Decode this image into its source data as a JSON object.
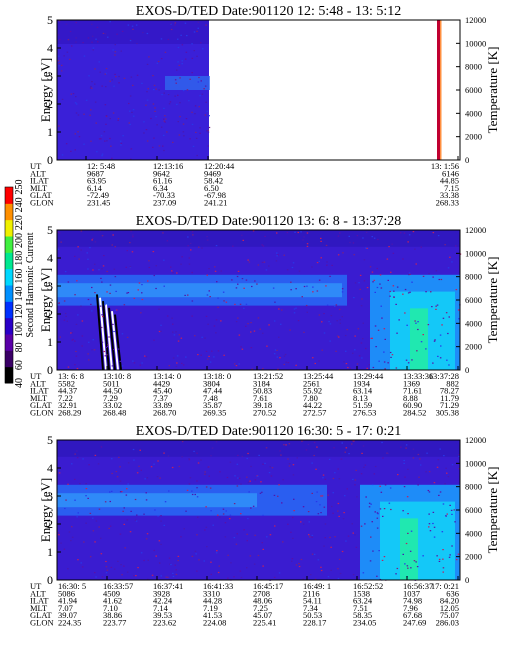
{
  "chart_data": [
    {
      "type": "heatmap",
      "title": "EXOS-D/TED   Date:901120  12: 5:48 - 13: 5:12",
      "ylabel": "Energy [eV]",
      "y2label": "Temperature [K]",
      "ylim": [
        0,
        5
      ],
      "y2lim": [
        0,
        12000
      ],
      "yticks": [
        "0",
        "1",
        "2",
        "3",
        "4",
        "5"
      ],
      "y2ticks": [
        "0",
        "2000",
        "4000",
        "6000",
        "8000",
        "10000",
        "12000"
      ],
      "grid": false,
      "orbit_labels": [
        "UT",
        "ALT",
        "ILAT",
        "MLT",
        "GLAT",
        "GLON"
      ],
      "orbit_columns": [
        {
          "UT": "12: 5:48",
          "ALT": "9687",
          "ILAT": "63.95",
          "MLT": "6.14",
          "GLAT": "-72.49",
          "GLON": "231.45"
        },
        {
          "UT": "12:13:16",
          "ALT": "9642",
          "ILAT": "61.16",
          "MLT": "6.34",
          "GLAT": "-70.33",
          "GLON": "237.09"
        },
        {
          "UT": "12:20:44",
          "ALT": "9469",
          "ILAT": "58.42",
          "MLT": "6.50",
          "GLAT": "-67.98",
          "GLON": "241.21"
        },
        {
          "UT": "13: 1:56",
          "ALT": "6146",
          "ILAT": "44.85",
          "MLT": "7.15",
          "GLAT": "33.38",
          "GLON": "268.33"
        }
      ]
    },
    {
      "type": "heatmap",
      "title": "EXOS-D/TED   Date:901120  13: 6: 8 - 13:37:28",
      "ylabel": "Energy [eV]",
      "y2label": "Temperature [K]",
      "ylim": [
        0,
        5
      ],
      "y2lim": [
        0,
        12000
      ],
      "yticks": [
        "0",
        "1",
        "2",
        "3",
        "4",
        "5"
      ],
      "y2ticks": [
        "0",
        "2000",
        "4000",
        "6000",
        "8000",
        "10000",
        "12000"
      ],
      "grid": false,
      "orbit_labels": [
        "UT",
        "ALT",
        "ILAT",
        "MLT",
        "GLAT",
        "GLON"
      ],
      "orbit_columns": [
        {
          "UT": "13: 6: 8",
          "ALT": "5582",
          "ILAT": "44.37",
          "MLT": "7.22",
          "GLAT": "32.91",
          "GLON": "268.29"
        },
        {
          "UT": "13:10: 8",
          "ALT": "5011",
          "ILAT": "44.50",
          "MLT": "7.29",
          "GLAT": "33.02",
          "GLON": "268.48"
        },
        {
          "UT": "13:14: 0",
          "ALT": "4429",
          "ILAT": "45.40",
          "MLT": "7.37",
          "GLAT": "33.89",
          "GLON": "268.70"
        },
        {
          "UT": "13:18: 0",
          "ALT": "3804",
          "ILAT": "47.44",
          "MLT": "7.48",
          "GLAT": "35.87",
          "GLON": "269.35"
        },
        {
          "UT": "13:21:52",
          "ALT": "3184",
          "ILAT": "50.83",
          "MLT": "7.61",
          "GLAT": "39.18",
          "GLON": "270.52"
        },
        {
          "UT": "13:25:44",
          "ALT": "2561",
          "ILAT": "55.92",
          "MLT": "7.80",
          "GLAT": "44.22",
          "GLON": "272.57"
        },
        {
          "UT": "13:29:44",
          "ALT": "1934",
          "ILAT": "63.14",
          "MLT": "8.13",
          "GLAT": "51.59",
          "GLON": "276.53"
        },
        {
          "UT": "13:33:36",
          "ALT": "1369",
          "ILAT": "71.61",
          "MLT": "8.88",
          "GLAT": "60.90",
          "GLON": "284.52"
        },
        {
          "UT": "13:37:28",
          "ALT": "882",
          "ILAT": "78.27",
          "MLT": "11.79",
          "GLAT": "71.29",
          "GLON": "305.38"
        }
      ]
    },
    {
      "type": "heatmap",
      "title": "EXOS-D/TED   Date:901120  16:30: 5 - 17: 0:21",
      "ylabel": "Energy [eV]",
      "y2label": "Temperature [K]",
      "ylim": [
        0,
        5
      ],
      "y2lim": [
        0,
        12000
      ],
      "yticks": [
        "0",
        "1",
        "2",
        "3",
        "4",
        "5"
      ],
      "y2ticks": [
        "0",
        "2000",
        "4000",
        "6000",
        "8000",
        "10000",
        "12000"
      ],
      "grid": false,
      "orbit_labels": [
        "UT",
        "ALT",
        "ILAT",
        "MLT",
        "GLAT",
        "GLON"
      ],
      "orbit_columns": [
        {
          "UT": "16:30: 5",
          "ALT": "5086",
          "ILAT": "41.94",
          "MLT": "7.07",
          "GLAT": "39.07",
          "GLON": "224.35"
        },
        {
          "UT": "16:33:57",
          "ALT": "4509",
          "ILAT": "41.62",
          "MLT": "7.10",
          "GLAT": "38.86",
          "GLON": "223.77"
        },
        {
          "UT": "16:37:41",
          "ALT": "3928",
          "ILAT": "42.24",
          "MLT": "7.14",
          "GLAT": "39.53",
          "GLON": "223.62"
        },
        {
          "UT": "16:41:33",
          "ALT": "3310",
          "ILAT": "44.28",
          "MLT": "7.19",
          "GLAT": "41.53",
          "GLON": "224.08"
        },
        {
          "UT": "16:45:17",
          "ALT": "2708",
          "ILAT": "48.06",
          "MLT": "7.25",
          "GLAT": "45.07",
          "GLON": "225.41"
        },
        {
          "UT": "16:49: 1",
          "ALT": "2116",
          "ILAT": "54.11",
          "MLT": "7.34",
          "GLAT": "50.53",
          "GLON": "228.17"
        },
        {
          "UT": "16:52:52",
          "ALT": "1538",
          "ILAT": "63.24",
          "MLT": "7.51",
          "GLAT": "58.35",
          "GLON": "234.05"
        },
        {
          "UT": "16:56:37",
          "ALT": "1037",
          "ILAT": "74.98",
          "MLT": "7.96",
          "GLAT": "67.68",
          "GLON": "247.69"
        },
        {
          "UT": "17: 0:21",
          "ALT": "636",
          "ILAT": "84.20",
          "MLT": "12.05",
          "GLAT": "75.07",
          "GLON": "286.03"
        }
      ]
    }
  ],
  "colorbar": {
    "label": "Second Harmonic Current",
    "ticks": [
      "40",
      "60",
      "80",
      "100",
      "120",
      "140",
      "160",
      "180",
      "200",
      "220",
      "240",
      "250"
    ],
    "colors": [
      "#000000",
      "#3a0066",
      "#5a00a8",
      "#2a00c8",
      "#0030ff",
      "#0090ff",
      "#00d8ff",
      "#00e890",
      "#40f040",
      "#f0f000",
      "#ff9000",
      "#ff0000"
    ]
  }
}
